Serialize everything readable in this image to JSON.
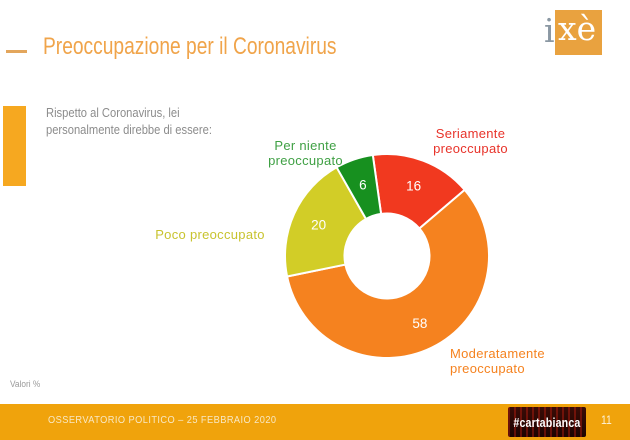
{
  "slide": {
    "title": "Preoccupazione per il Coronavirus",
    "subtitle_line1": "Rispetto al Coronavirus, lei",
    "subtitle_line2": "personalmente direbbe di essere:",
    "note": "Valori %",
    "logo": {
      "i": "i",
      "xe": "xè"
    },
    "footer": {
      "source": "OSSERVATORIO POLITICO – 25 FEBBRAIO 2020",
      "brand": "#cartabianca",
      "page": "11"
    }
  },
  "colors": {
    "accent_orange_band": "#F0A30C",
    "accent_orange_bar": "#F6A820",
    "title_orange": "#F0A44A",
    "logo_orange": "#E9A23F",
    "seriamente_red": "#F1391F",
    "moderatamente_orange": "#F5821F",
    "poco_yellow": "#D2CD27",
    "per_niente_green": "#17901F"
  },
  "chart_data": {
    "type": "pie",
    "subtype": "donut",
    "title": "Preoccupazione per il Coronavirus",
    "unit": "%",
    "start_angle_deg": -8,
    "direction": "clockwise",
    "legend_position": "outside-labels",
    "segments": [
      {
        "label": "Seriamente preoccupato",
        "value": 16,
        "color": "#F1391F",
        "label_color": "#E8332A"
      },
      {
        "label": "Moderatamente preoccupato",
        "value": 58,
        "color": "#F5821F",
        "label_color": "#F5821F"
      },
      {
        "label": "Poco preoccupato",
        "value": 20,
        "color": "#D2CD27",
        "label_color": "#C8C32E"
      },
      {
        "label": "Per niente preoccupato",
        "value": 6,
        "color": "#17901F",
        "label_color": "#3FA044"
      }
    ]
  }
}
